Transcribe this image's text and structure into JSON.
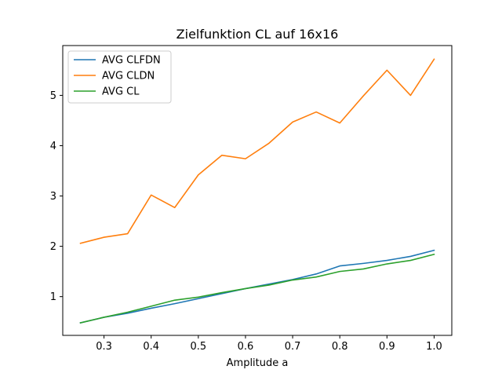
{
  "chart_data": {
    "type": "line",
    "title": "Zielfunktion CL auf 16x16",
    "xlabel": "Amplitude a",
    "ylabel": "",
    "xlim": [
      0.2125,
      1.0375
    ],
    "ylim": [
      0.23,
      5.99
    ],
    "xticks": [
      0.3,
      0.4,
      0.5,
      0.6,
      0.7,
      0.8,
      0.9,
      1.0
    ],
    "xtick_labels": [
      "0.3",
      "0.4",
      "0.5",
      "0.6",
      "0.7",
      "0.8",
      "0.9",
      "1.0"
    ],
    "yticks": [
      1,
      2,
      3,
      4,
      5
    ],
    "ytick_labels": [
      "1",
      "2",
      "3",
      "4",
      "5"
    ],
    "grid": false,
    "legend_position": "top-left",
    "x": [
      0.25,
      0.3,
      0.35,
      0.4,
      0.45,
      0.5,
      0.55,
      0.6,
      0.65,
      0.7,
      0.75,
      0.8,
      0.85,
      0.9,
      0.95,
      1.0
    ],
    "series": [
      {
        "name": "AVG CLFDN",
        "color": "#1f77b4",
        "values": [
          0.48,
          0.59,
          0.67,
          0.77,
          0.86,
          0.96,
          1.06,
          1.16,
          1.25,
          1.34,
          1.45,
          1.61,
          1.66,
          1.72,
          1.8,
          1.92
        ]
      },
      {
        "name": "AVG CLDN",
        "color": "#ff7f0e",
        "values": [
          2.06,
          2.18,
          2.25,
          3.02,
          2.77,
          3.42,
          3.81,
          3.74,
          4.05,
          4.47,
          4.67,
          4.45,
          4.99,
          5.5,
          5.0,
          5.72
        ]
      },
      {
        "name": "AVG CL",
        "color": "#2ca02c",
        "values": [
          0.48,
          0.59,
          0.69,
          0.81,
          0.93,
          0.99,
          1.08,
          1.16,
          1.23,
          1.33,
          1.39,
          1.5,
          1.55,
          1.65,
          1.72,
          1.84
        ]
      }
    ]
  }
}
